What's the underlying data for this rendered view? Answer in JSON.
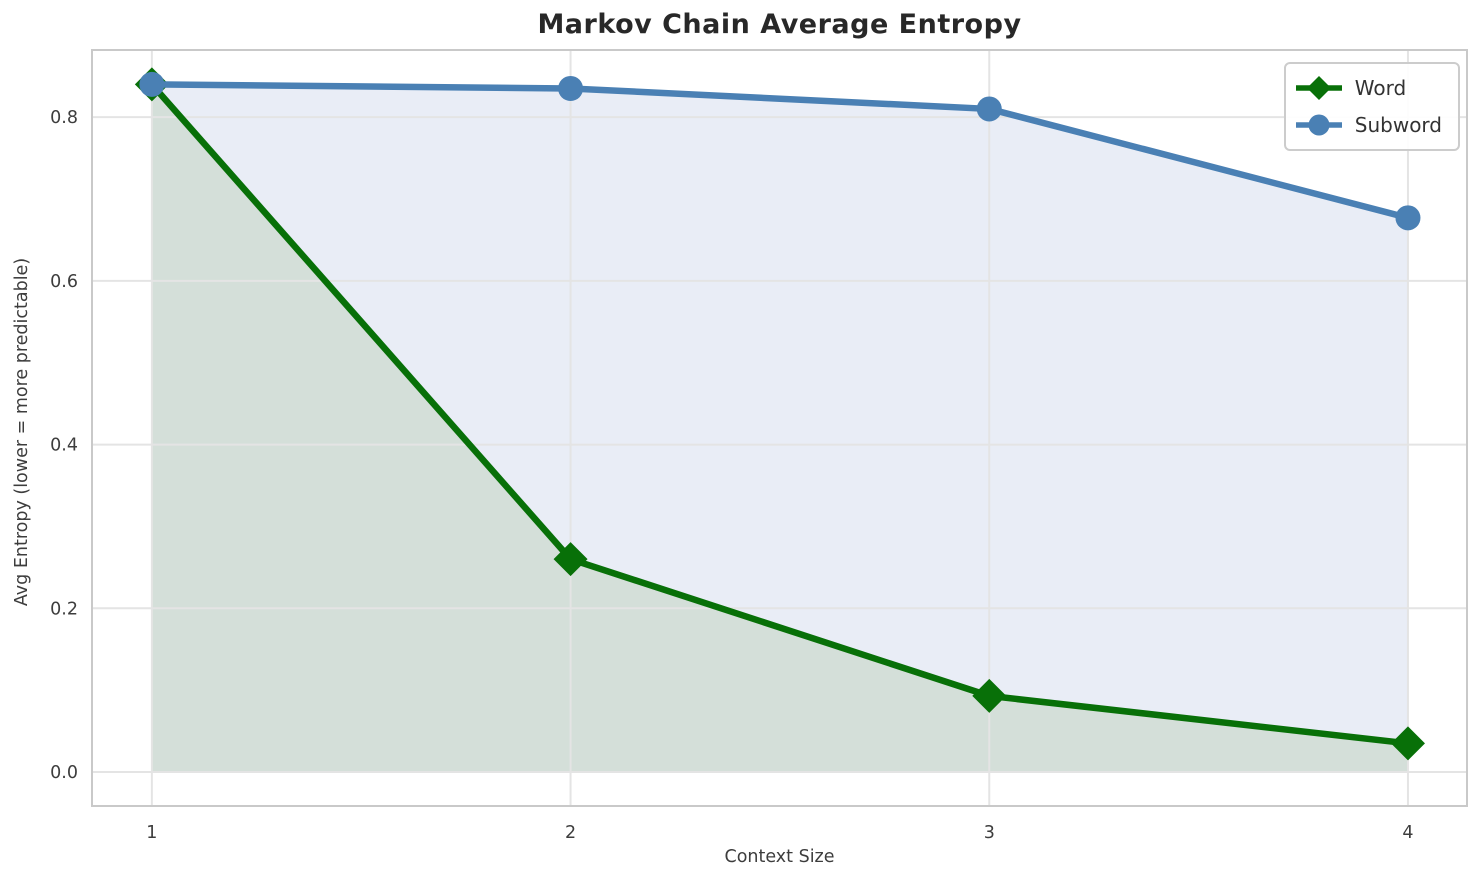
{
  "chart_data": {
    "type": "line",
    "title": "Markov Chain Average Entropy",
    "xlabel": "Context Size",
    "ylabel": "Avg Entropy (lower = more predictable)",
    "x": [
      1,
      2,
      3,
      4
    ],
    "xtick_labels": [
      "1",
      "2",
      "3",
      "4"
    ],
    "yticks": [
      0.0,
      0.2,
      0.4,
      0.6,
      0.8
    ],
    "ytick_labels": [
      "0.0",
      "0.2",
      "0.4",
      "0.6",
      "0.8"
    ],
    "xlim": [
      0.857,
      4.141
    ],
    "ylim": [
      -0.0415,
      0.882
    ],
    "grid": true,
    "legend_position": "upper right",
    "fill_baseline": 0,
    "series": [
      {
        "name": "Word",
        "values": [
          0.84,
          0.26,
          0.093,
          0.035
        ],
        "color": "#087008",
        "fill_color": "#d4dfd9",
        "marker": "diamond"
      },
      {
        "name": "Subword",
        "values": [
          0.84,
          0.835,
          0.81,
          0.677
        ],
        "color": "#4a80b4",
        "fill_color": "#e9edf6",
        "marker": "circle"
      }
    ],
    "colors": {
      "background": "#ffffff",
      "grid": "#e4e4e4",
      "spine": "#c9c9c9",
      "title": "#282828",
      "tick_label": "#3d3d3d",
      "axis_label": "#3d3d3d",
      "legend_border": "#cccccc",
      "legend_text": "#333333"
    }
  }
}
